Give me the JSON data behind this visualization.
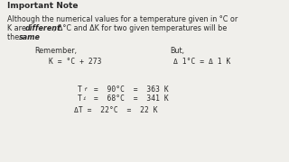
{
  "bg_color": "#f0efeb",
  "title_text": "Important Note",
  "para1": "Although the numerical values for a temperature given in °C or",
  "para2a": "K are ",
  "para2b": "different",
  "para2c": ", Δ°C and ΔK for two given temperatures will be",
  "para3a": "the ",
  "para3b": "same",
  "para3c": ".",
  "remember": "Remember,",
  "but": "But,",
  "eq_left": "K = °C + 273",
  "eq_right": "Δ 1°C = Δ 1 K",
  "tf_row": " =  90°C  =  363 K",
  "ti_row": " =  68°C  =  341 K",
  "dt_row": "ΔT =  22°C  =  22 K",
  "text_color": "#2a2a2a",
  "fs_body": 5.8,
  "fs_title": 6.5
}
